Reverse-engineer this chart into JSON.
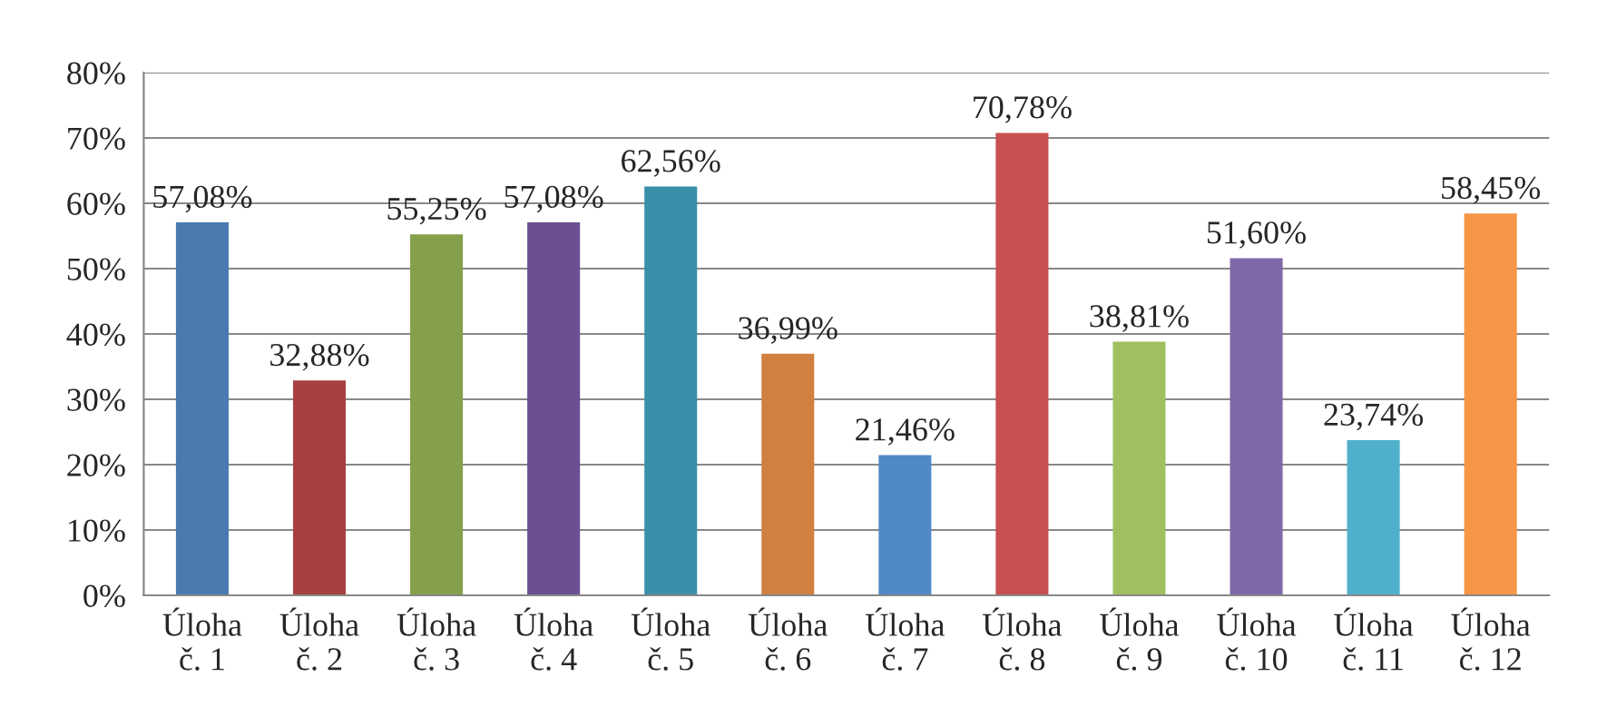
{
  "chart_data": {
    "type": "bar",
    "categories": [
      "Úloha\nč. 1",
      "Úloha\nč. 2",
      "Úloha\nč. 3",
      "Úloha\nč. 4",
      "Úloha\nč. 5",
      "Úloha\nč. 6",
      "Úloha\nč. 7",
      "Úloha\nč. 8",
      "Úloha\nč. 9",
      "Úloha\nč. 10",
      "Úloha\nč. 11",
      "Úloha\nč. 12"
    ],
    "values": [
      57.08,
      32.88,
      55.25,
      57.08,
      62.56,
      36.99,
      21.46,
      70.78,
      38.81,
      51.6,
      23.74,
      58.45
    ],
    "value_labels": [
      "57,08%",
      "32,88%",
      "55,25%",
      "57,08%",
      "62,56%",
      "36,99%",
      "21,46%",
      "70,78%",
      "38,81%",
      "51,60%",
      "23,74%",
      "58,45%"
    ],
    "colors": [
      "#4a7ab0",
      "#a84040",
      "#84a04a",
      "#6a5090",
      "#3a90a8",
      "#d08040",
      "#5088c8",
      "#c85050",
      "#a0c060",
      "#8068a8",
      "#50b0cc",
      "#f79646"
    ],
    "ylim": [
      0,
      80
    ],
    "yticks": [
      {
        "value": 0,
        "label": "0%"
      },
      {
        "value": 10,
        "label": "10%"
      },
      {
        "value": 20,
        "label": "20%"
      },
      {
        "value": 30,
        "label": "30%"
      },
      {
        "value": 40,
        "label": "40%"
      },
      {
        "value": 50,
        "label": "50%"
      },
      {
        "value": 60,
        "label": "60%"
      },
      {
        "value": 70,
        "label": "70%"
      },
      {
        "value": 80,
        "label": "80%"
      }
    ],
    "grid": "y",
    "legend": false
  }
}
